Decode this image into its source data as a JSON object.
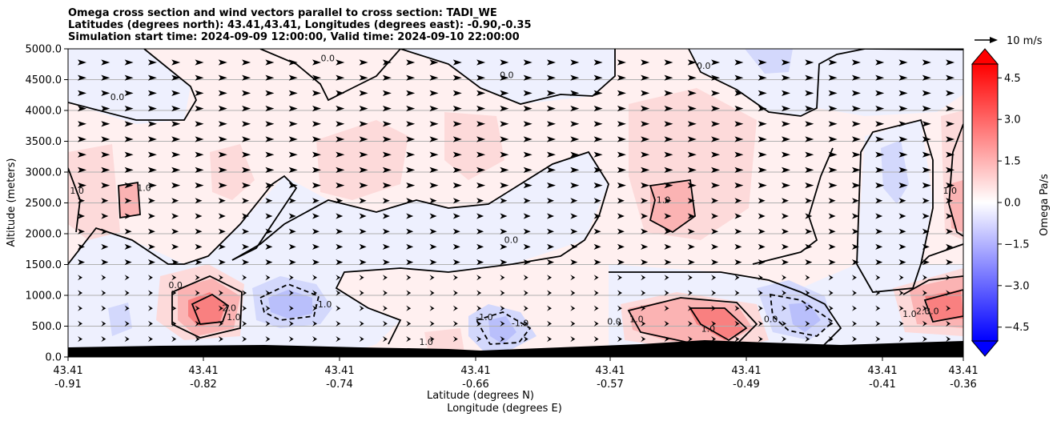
{
  "chart_data": {
    "type": "heatmap",
    "title": [
      "Omega cross section and wind vectors parallel to cross section: TADI_WE",
      "Latitudes (degrees north): 43.41,43.41, Longitudes (degrees east): -0.90,-0.35",
      "Simulation start time: 2024-09-09 12:00:00, Valid time: 2024-09-10 22:00:00"
    ],
    "xlabel": [
      "Latitude (degrees N)",
      "Longitude (degrees E)"
    ],
    "ylabel": "Altitude (meters)",
    "ylim": [
      0,
      5000
    ],
    "y_ticks": [
      "0.0",
      "500.0",
      "1000.0",
      "1500.0",
      "2000.0",
      "2500.0",
      "3000.0",
      "3500.0",
      "4000.0",
      "4500.0",
      "5000.0"
    ],
    "x_ticks": [
      {
        "lat": "43.41",
        "lon": "-0.91"
      },
      {
        "lat": "43.41",
        "lon": "-0.82"
      },
      {
        "lat": "43.41",
        "lon": "-0.74"
      },
      {
        "lat": "43.41",
        "lon": "-0.66"
      },
      {
        "lat": "43.41",
        "lon": "-0.57"
      },
      {
        "lat": "43.41",
        "lon": "-0.49"
      },
      {
        "lat": "43.41",
        "lon": "-0.41"
      },
      {
        "lat": "43.41",
        "lon": "-0.36"
      }
    ],
    "grid": "horizontal",
    "colorbar": {
      "label": "Omega Pa/s",
      "range": [
        -5,
        5
      ],
      "ticks": [
        "−4.5",
        "−3.0",
        "−1.5",
        "0.0",
        "1.5",
        "3.0",
        "4.5"
      ],
      "colors": {
        "negative": "#0000ff",
        "zero": "#ffffff",
        "positive": "#ff0000"
      }
    },
    "quiver_key": "10 m/s",
    "terrain_color": "#000000",
    "contour_labels": [
      {
        "text": "0.0",
        "x": 0.29,
        "y": 4850
      },
      {
        "text": "0.0",
        "x": 0.055,
        "y": 4220
      },
      {
        "text": "0.0",
        "x": 0.49,
        "y": 4580
      },
      {
        "text": "0.0",
        "x": 0.71,
        "y": 4730
      },
      {
        "text": "1.0",
        "x": 0.01,
        "y": 2700
      },
      {
        "text": "1.0",
        "x": 0.085,
        "y": 2750
      },
      {
        "text": "1.0",
        "x": 0.665,
        "y": 2550
      },
      {
        "text": "0.0",
        "x": 0.495,
        "y": 1900
      },
      {
        "text": "1.0",
        "x": 0.985,
        "y": 2700
      },
      {
        "text": "0.0",
        "x": 0.12,
        "y": 1170
      },
      {
        "text": "2.0",
        "x": 0.18,
        "y": 800
      },
      {
        "text": "1.0",
        "x": 0.185,
        "y": 650
      },
      {
        "text": "-1.0",
        "x": 0.285,
        "y": 860
      },
      {
        "text": "-1.0",
        "x": 0.465,
        "y": 650
      },
      {
        "text": "-1.0",
        "x": 0.505,
        "y": 550
      },
      {
        "text": "1.0",
        "x": 0.4,
        "y": 250
      },
      {
        "text": "0.0",
        "x": 0.61,
        "y": 580
      },
      {
        "text": "1.0",
        "x": 0.635,
        "y": 620
      },
      {
        "text": "1.0",
        "x": 0.715,
        "y": 460
      },
      {
        "text": "0.0",
        "x": 0.785,
        "y": 620
      },
      {
        "text": "1.0",
        "x": 0.94,
        "y": 700
      },
      {
        "text": "2.0",
        "x": 0.955,
        "y": 750
      },
      {
        "text": "3.0",
        "x": 0.965,
        "y": 750
      }
    ]
  }
}
